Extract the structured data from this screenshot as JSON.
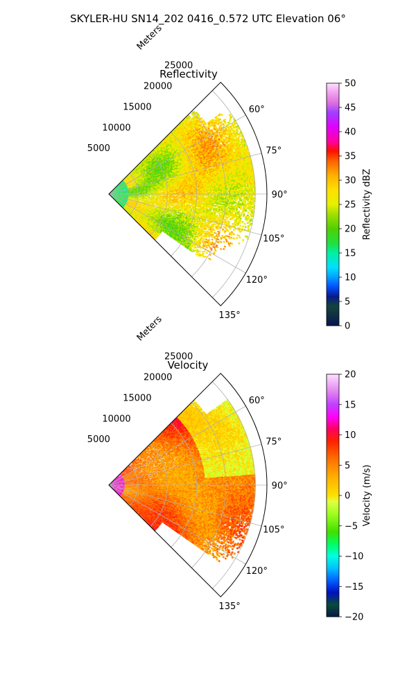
{
  "figure": {
    "suptitle": "SKYLER-HU  SN14_202  0416_0.572 UTC Elevation 06°"
  },
  "chart_data": [
    {
      "type": "heatmap",
      "title": "Reflectivity",
      "projection": "polar-sector",
      "radial_label": "Meters",
      "radial_ticks": [
        "5000",
        "10000",
        "15000",
        "20000",
        "25000"
      ],
      "radial_tick_values": [
        5000,
        10000,
        15000,
        20000,
        25000
      ],
      "r_max": 27000,
      "theta_range_deg": [
        45,
        135
      ],
      "theta_ticks": [
        "60°",
        "75°",
        "90°",
        "105°",
        "120°",
        "135°"
      ],
      "theta_tick_values": [
        60,
        75,
        90,
        105,
        120,
        135
      ],
      "grid": true,
      "colorbar": {
        "label": "Reflectivity dBZ",
        "min": 0,
        "max": 50,
        "ticks": [
          "0",
          "5",
          "10",
          "15",
          "20",
          "25",
          "30",
          "35",
          "40",
          "45",
          "50"
        ],
        "tick_values": [
          0,
          5,
          10,
          15,
          20,
          25,
          30,
          35,
          40,
          45,
          50
        ],
        "colormap": "pyart_NWSRef",
        "color_stops": [
          {
            "v": 0,
            "c": "#0a1550"
          },
          {
            "v": 4,
            "c": "#12453a"
          },
          {
            "v": 6,
            "c": "#0a1a8c"
          },
          {
            "v": 8,
            "c": "#0050ff"
          },
          {
            "v": 10,
            "c": "#00a0ff"
          },
          {
            "v": 12,
            "c": "#00e0ff"
          },
          {
            "v": 15,
            "c": "#00f0a0"
          },
          {
            "v": 17,
            "c": "#20e040"
          },
          {
            "v": 20,
            "c": "#50d000"
          },
          {
            "v": 23,
            "c": "#a0e000"
          },
          {
            "v": 25,
            "c": "#e8f000"
          },
          {
            "v": 28,
            "c": "#ffe000"
          },
          {
            "v": 31,
            "c": "#ffb000"
          },
          {
            "v": 34,
            "c": "#ff6000"
          },
          {
            "v": 36,
            "c": "#ff1000"
          },
          {
            "v": 38,
            "c": "#ff00a0"
          },
          {
            "v": 41,
            "c": "#e000ff"
          },
          {
            "v": 44,
            "c": "#a040ff"
          },
          {
            "v": 46,
            "c": "#e070e0"
          },
          {
            "v": 48,
            "c": "#f0a0f0"
          },
          {
            "v": 50,
            "c": "#ffe0ff"
          }
        ]
      }
    },
    {
      "type": "heatmap",
      "title": "Velocity",
      "projection": "polar-sector",
      "radial_label": "Meters",
      "radial_ticks": [
        "5000",
        "10000",
        "15000",
        "20000",
        "25000"
      ],
      "radial_tick_values": [
        5000,
        10000,
        15000,
        20000,
        25000
      ],
      "r_max": 27000,
      "theta_range_deg": [
        45,
        135
      ],
      "theta_ticks": [
        "60°",
        "75°",
        "90°",
        "105°",
        "120°",
        "135°"
      ],
      "theta_tick_values": [
        60,
        75,
        90,
        105,
        120,
        135
      ],
      "grid": true,
      "colorbar": {
        "label": "Velocity (m/s)",
        "min": -20,
        "max": 20,
        "ticks": [
          "−20",
          "−15",
          "−10",
          "−5",
          "0",
          "5",
          "10",
          "15",
          "20"
        ],
        "tick_values": [
          -20,
          -15,
          -10,
          -5,
          0,
          5,
          10,
          15,
          20
        ],
        "colormap": "pyart_BuDRd",
        "color_stops": [
          {
            "v": -20,
            "c": "#081a4a"
          },
          {
            "v": -18,
            "c": "#0a4a3a"
          },
          {
            "v": -16,
            "c": "#0010c0"
          },
          {
            "v": -14,
            "c": "#0060ff"
          },
          {
            "v": -12,
            "c": "#00c0ff"
          },
          {
            "v": -10,
            "c": "#00ffe0"
          },
          {
            "v": -8,
            "c": "#00ff60"
          },
          {
            "v": -6,
            "c": "#40e000"
          },
          {
            "v": -3,
            "c": "#a0ff20"
          },
          {
            "v": -1,
            "c": "#e0ff40"
          },
          {
            "v": 0,
            "c": "#ffe000"
          },
          {
            "v": 3,
            "c": "#ffb000"
          },
          {
            "v": 6,
            "c": "#ff7000"
          },
          {
            "v": 9,
            "c": "#ff2000"
          },
          {
            "v": 11,
            "c": "#ff0060"
          },
          {
            "v": 13,
            "c": "#ff00ff"
          },
          {
            "v": 15,
            "c": "#c040ff"
          },
          {
            "v": 17,
            "c": "#e080f0"
          },
          {
            "v": 20,
            "c": "#ffe0ff"
          }
        ]
      }
    }
  ]
}
